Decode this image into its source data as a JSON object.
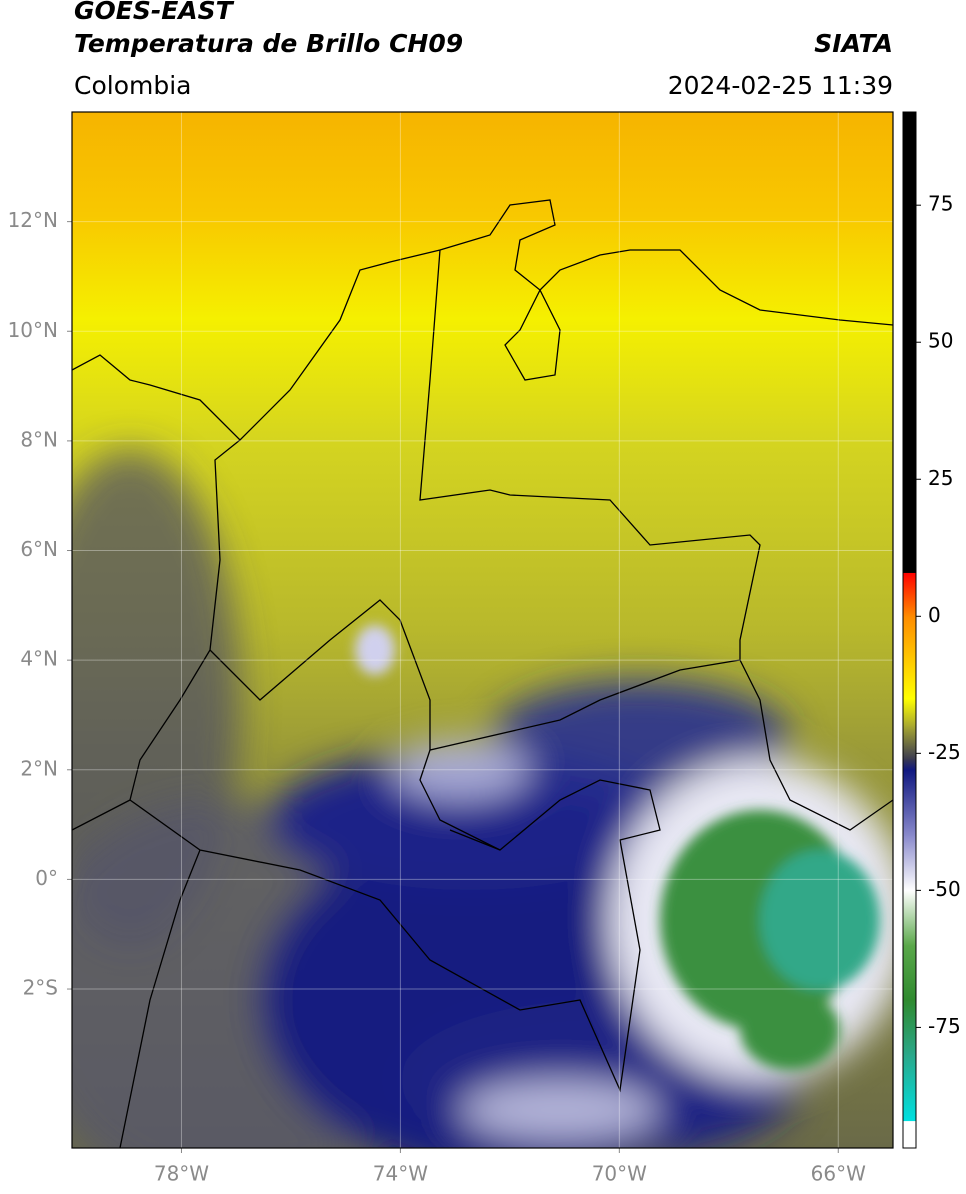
{
  "header": {
    "title": "GOES-EAST",
    "subtitle": "Temperatura de Brillo CH09",
    "region": "Colombia",
    "source": "SIATA",
    "datetime": "2024-02-25 11:39"
  },
  "map": {
    "xlim": [
      -80,
      -65
    ],
    "ylim": [
      -4.9,
      14
    ],
    "grid": true,
    "xticks": [
      {
        "value": -78,
        "label": "78°W"
      },
      {
        "value": -74,
        "label": "74°W"
      },
      {
        "value": -70,
        "label": "70°W"
      },
      {
        "value": -66,
        "label": "66°W"
      }
    ],
    "yticks": [
      {
        "value": 12,
        "label": "12°N"
      },
      {
        "value": 10,
        "label": "10°N"
      },
      {
        "value": 8,
        "label": "8°N"
      },
      {
        "value": 6,
        "label": "6°N"
      },
      {
        "value": 4,
        "label": "4°N"
      },
      {
        "value": 2,
        "label": "2°N"
      },
      {
        "value": 0,
        "label": "0°"
      },
      {
        "value": -2,
        "label": "2°S"
      }
    ]
  },
  "colorbar": {
    "clim": [
      -97,
      92
    ],
    "ticks": [
      75,
      50,
      25,
      0,
      -25,
      -50,
      -75
    ],
    "colors": [
      {
        "value": -97,
        "color": "#ffffff"
      },
      {
        "value": -92,
        "color": "#ffffff"
      },
      {
        "value": -92,
        "color": "#00e0e0"
      },
      {
        "value": -80,
        "color": "#2aa88a"
      },
      {
        "value": -70,
        "color": "#2f8a2f"
      },
      {
        "value": -60,
        "color": "#5aa84a"
      },
      {
        "value": -50,
        "color": "#ffffff"
      },
      {
        "value": -40,
        "color": "#8a8acc"
      },
      {
        "value": -28,
        "color": "#101880"
      },
      {
        "value": -26,
        "color": "#3a3a50"
      },
      {
        "value": -20,
        "color": "#a8a830"
      },
      {
        "value": -15,
        "color": "#ffff00"
      },
      {
        "value": 0,
        "color": "#ff8c00"
      },
      {
        "value": 8,
        "color": "#ff0000"
      },
      {
        "value": 8,
        "color": "#000000"
      },
      {
        "value": 92,
        "color": "#000000"
      }
    ]
  }
}
